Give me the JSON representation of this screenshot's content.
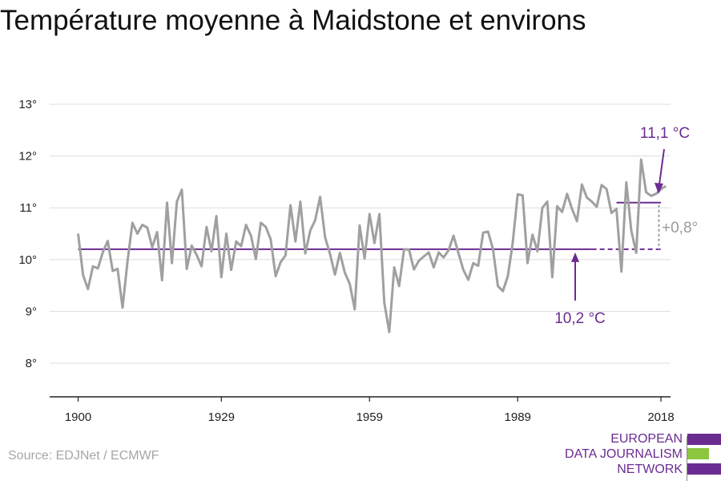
{
  "title": "Température moyenne à Maidstone et environs",
  "source": "Source: EDJNet / ECMWF",
  "logo": {
    "lines": [
      "EUROPEAN",
      "DATA JOURNALISM",
      "NETWORK"
    ],
    "colors": {
      "purple": "#6b2c91",
      "green": "#8dc63f"
    }
  },
  "colors": {
    "series": "#a0a0a0",
    "baseline": "#6b2c91",
    "annotation": "#6b2c91",
    "diff": "#9a9a9a",
    "grid": "#dddddd",
    "axis": "#222222"
  },
  "annotations": {
    "baseline_label": "10,2 °C",
    "recent_label": "11,1 °C",
    "diff_label": "+0,8°"
  },
  "chart_data": {
    "type": "line",
    "title": "Température moyenne à Maidstone et environs",
    "xlabel": "",
    "ylabel": "",
    "xlim": [
      1900,
      2019
    ],
    "ylim": [
      7.35,
      13.0
    ],
    "grid": true,
    "x_ticks": [
      1900,
      1929,
      1959,
      1989,
      2018
    ],
    "y_ticks": [
      8,
      9,
      10,
      11,
      12,
      13
    ],
    "y_tick_labels": [
      "8°",
      "9°",
      "10°",
      "11°",
      "12°",
      "13°"
    ],
    "x": [
      1900,
      1901,
      1902,
      1903,
      1904,
      1905,
      1906,
      1907,
      1908,
      1909,
      1910,
      1911,
      1912,
      1913,
      1914,
      1915,
      1916,
      1917,
      1918,
      1919,
      1920,
      1921,
      1922,
      1923,
      1924,
      1925,
      1926,
      1927,
      1928,
      1929,
      1930,
      1931,
      1932,
      1933,
      1934,
      1935,
      1936,
      1937,
      1938,
      1939,
      1940,
      1941,
      1942,
      1943,
      1944,
      1945,
      1946,
      1947,
      1948,
      1949,
      1950,
      1951,
      1952,
      1953,
      1954,
      1955,
      1956,
      1957,
      1958,
      1959,
      1960,
      1961,
      1962,
      1963,
      1964,
      1965,
      1966,
      1967,
      1968,
      1969,
      1970,
      1971,
      1972,
      1973,
      1974,
      1975,
      1976,
      1977,
      1978,
      1979,
      1980,
      1981,
      1982,
      1983,
      1984,
      1985,
      1986,
      1987,
      1988,
      1989,
      1990,
      1991,
      1992,
      1993,
      1994,
      1995,
      1996,
      1997,
      1998,
      1999,
      2000,
      2001,
      2002,
      2003,
      2004,
      2005,
      2006,
      2007,
      2008,
      2009,
      2010,
      2011,
      2012,
      2013,
      2014,
      2015,
      2016,
      2017,
      2018,
      2019
    ],
    "series": [
      {
        "values": [
          10.5,
          9.7,
          9.43,
          9.87,
          9.83,
          10.14,
          10.36,
          9.78,
          9.82,
          9.07,
          9.97,
          10.71,
          10.5,
          10.67,
          10.62,
          10.24,
          10.53,
          9.6,
          11.1,
          9.93,
          11.12,
          11.35,
          9.82,
          10.27,
          10.09,
          9.87,
          10.63,
          10.16,
          10.84,
          9.66,
          10.5,
          9.8,
          10.35,
          10.26,
          10.67,
          10.46,
          10.01,
          10.71,
          10.63,
          10.39,
          9.68,
          9.95,
          10.08,
          11.05,
          10.35,
          11.12,
          10.12,
          10.56,
          10.76,
          11.21,
          10.43,
          10.11,
          9.71,
          10.13,
          9.75,
          9.53,
          9.04,
          10.66,
          10.02,
          10.88,
          10.32,
          10.88,
          9.17,
          8.6,
          9.85,
          9.49,
          10.2,
          10.19,
          9.81,
          9.98,
          10.06,
          10.14,
          9.85,
          10.14,
          10.04,
          10.18,
          10.46,
          10.13,
          9.8,
          9.61,
          9.93,
          9.88,
          10.52,
          10.54,
          10.2,
          9.49,
          9.39,
          9.68,
          10.32,
          11.26,
          11.24,
          9.93,
          10.48,
          10.16,
          11.0,
          11.12,
          9.66,
          11.03,
          10.92,
          11.27,
          10.98,
          10.74,
          11.45,
          11.2,
          11.12,
          11.02,
          11.44,
          11.36,
          10.9,
          10.98,
          9.77,
          11.49,
          10.56,
          10.13,
          11.93,
          11.3,
          11.23,
          11.27,
          11.36,
          11.42
        ]
      }
    ],
    "reference_lines": [
      {
        "label": "10,2 °C",
        "value": 10.2,
        "x_start": 1900,
        "x_end": 2018
      },
      {
        "label": "11,1 °C",
        "value": 11.1,
        "x_start": 2009,
        "x_end": 2018
      }
    ]
  }
}
